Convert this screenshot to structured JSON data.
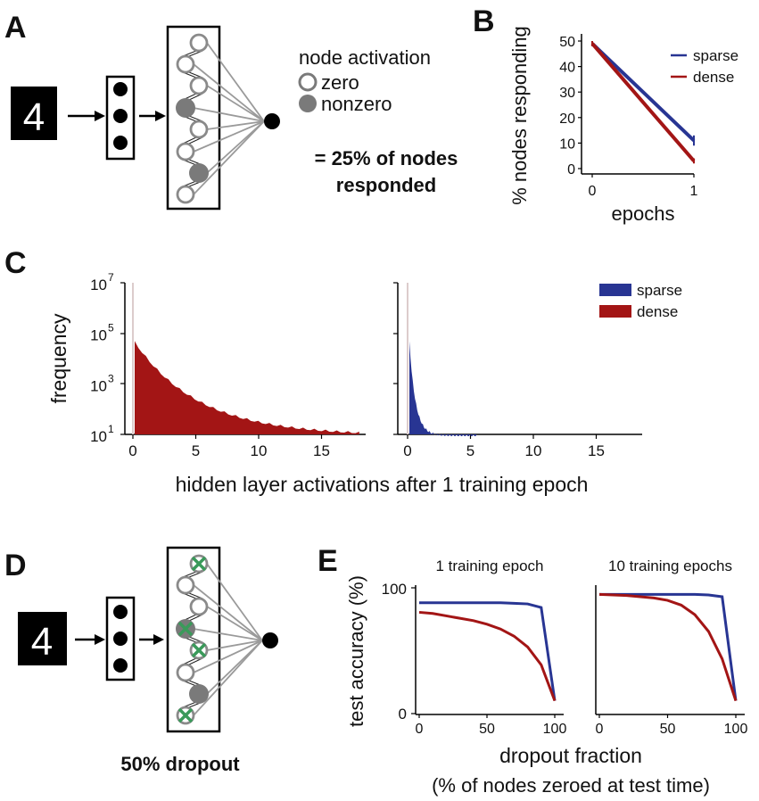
{
  "panels": {
    "A": {
      "letter": "A",
      "digit": "4",
      "legend_title": "node activation",
      "legend_zero": "zero",
      "legend_nonzero": "nonzero",
      "result_line1": "= 25% of nodes",
      "result_line2": "responded"
    },
    "B": {
      "letter": "B"
    },
    "C": {
      "letter": "C"
    },
    "D": {
      "letter": "D",
      "digit": "4",
      "caption": "50% dropout"
    },
    "E": {
      "letter": "E"
    }
  },
  "colors": {
    "sparse": "#283593",
    "dense": "#a31515",
    "node_filled": "#7a7a7a",
    "dropout_cross": "#3a9a5a",
    "connection": "#9a9a9a"
  },
  "chart_data": [
    {
      "panel": "B",
      "type": "line",
      "x": [
        0,
        1
      ],
      "xticks": [
        "0",
        "1"
      ],
      "xlabel": "epochs",
      "ylabel": "% nodes responding",
      "ylim": [
        0,
        50
      ],
      "yticks": [
        "0",
        "10",
        "20",
        "30",
        "40",
        "50"
      ],
      "legend": "top-right",
      "series": [
        {
          "name": "sparse",
          "values": [
            49,
            11
          ],
          "error": [
            1,
            2
          ]
        },
        {
          "name": "dense",
          "values": [
            49,
            3
          ],
          "error": [
            1,
            1
          ]
        }
      ]
    },
    {
      "panel": "C",
      "type": "bar",
      "subtype": "histogram",
      "xlabel": "hidden layer activations after 1 training epoch",
      "ylabel": "frequency",
      "yscale": "log",
      "yticks": [
        {
          "base": "10",
          "exp": "7"
        },
        {
          "base": "10",
          "exp": "5"
        },
        {
          "base": "10",
          "exp": "3"
        },
        {
          "base": "10",
          "exp": "1"
        }
      ],
      "xticks": [
        "0",
        "5",
        "10",
        "15"
      ],
      "legend": "top-right",
      "series": [
        {
          "name": "dense",
          "x_max": 18,
          "peak": 50000,
          "floor": 10
        },
        {
          "name": "sparse",
          "x_max": 5.5,
          "peak": 50000,
          "floor": 10
        }
      ]
    },
    {
      "panel": "E",
      "type": "line",
      "ylabel": "test accuracy (%)",
      "xlabel": "dropout fraction",
      "xlabel2": "(% of nodes zeroed at test time)",
      "yticks": [
        "100",
        "0"
      ],
      "subplots": [
        {
          "title": "1 training epoch",
          "x": [
            0,
            10,
            20,
            30,
            40,
            50,
            60,
            70,
            80,
            90,
            100
          ],
          "xticks": [
            "0",
            "50",
            "100"
          ],
          "ylim": [
            0,
            100
          ],
          "series": [
            {
              "name": "sparse",
              "values": [
                92,
                92,
                92,
                92,
                92,
                92,
                92,
                91.5,
                91,
                88,
                10
              ]
            },
            {
              "name": "dense",
              "values": [
                84,
                83,
                81,
                79,
                77,
                74,
                70,
                64,
                55,
                40,
                10
              ]
            }
          ]
        },
        {
          "title": "10 training epochs",
          "x": [
            0,
            10,
            20,
            30,
            40,
            50,
            60,
            70,
            80,
            90,
            100
          ],
          "xticks": [
            "0",
            "50",
            "100"
          ],
          "ylim": [
            0,
            100
          ],
          "series": [
            {
              "name": "sparse",
              "values": [
                99,
                99,
                99,
                99,
                99,
                99,
                99,
                99,
                98.5,
                97,
                10
              ]
            },
            {
              "name": "dense",
              "values": [
                99,
                98.5,
                98,
                97,
                96,
                94,
                90,
                82,
                68,
                45,
                10
              ]
            }
          ]
        }
      ]
    }
  ]
}
